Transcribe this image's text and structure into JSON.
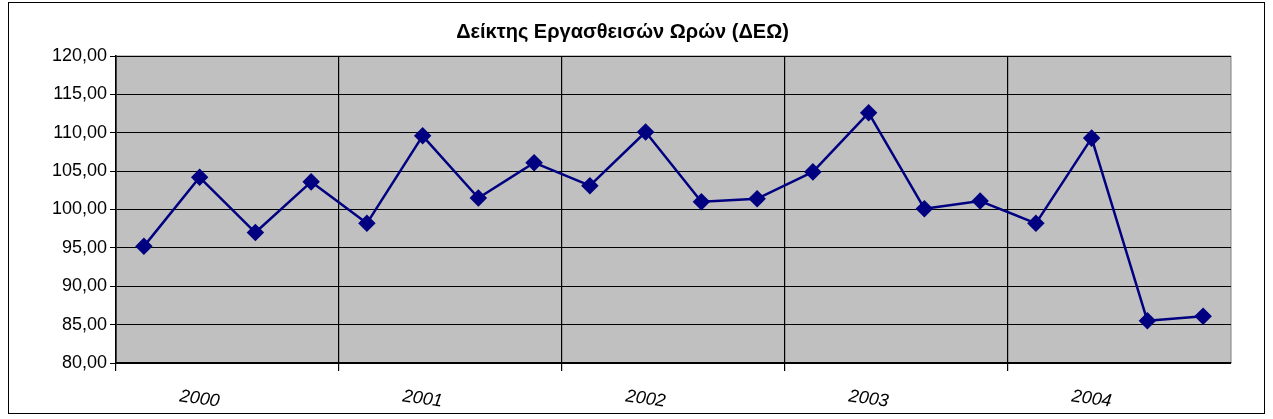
{
  "chart_data": {
    "type": "line",
    "title": "Δείκτης Εργασθεισών Ωρών (ΔΕΩ)",
    "categories": [
      null,
      "2000",
      null,
      null,
      null,
      "2001",
      null,
      null,
      null,
      "2002",
      null,
      null,
      null,
      "2003",
      null,
      null,
      null,
      "2004",
      null,
      null
    ],
    "series": [
      {
        "color": "#000080",
        "values": [
          95.2,
          104.2,
          97.0,
          103.6,
          98.2,
          109.6,
          101.5,
          106.1,
          103.1,
          110.1,
          101.0,
          101.4,
          104.9,
          112.6,
          100.1,
          101.1,
          98.2,
          109.3,
          85.5,
          86.1
        ]
      }
    ],
    "ylim": [
      80,
      120
    ],
    "yticks": [
      {
        "value": 80,
        "label": "80,00"
      },
      {
        "value": 85,
        "label": "85,00"
      },
      {
        "value": 90,
        "label": "90,00"
      },
      {
        "value": 95,
        "label": "95,00"
      },
      {
        "value": 100,
        "label": "100,00"
      },
      {
        "value": 105,
        "label": "105,00"
      },
      {
        "value": 110,
        "label": "110,00"
      },
      {
        "value": 115,
        "label": "115,00"
      },
      {
        "value": 120,
        "label": "120,00"
      }
    ],
    "grid": true,
    "legend": false,
    "marker": "diamond",
    "line_style": "solid"
  }
}
